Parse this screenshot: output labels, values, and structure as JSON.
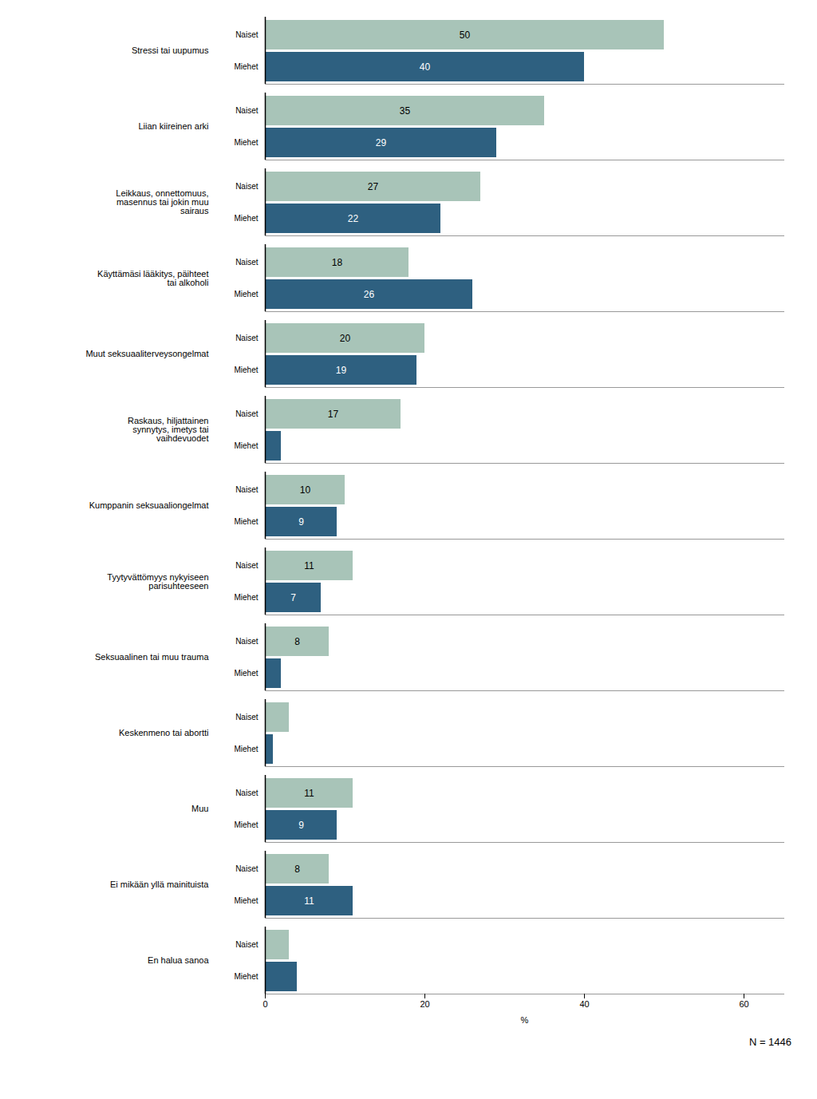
{
  "chart_data": {
    "type": "bar",
    "orientation": "horizontal",
    "categories": [
      "Stressi tai uupumus",
      "Liian kiireinen arki",
      "Leikkaus, onnettomuus,\nmasennus tai jokin muu\nsairaus",
      "Käyttämäsi lääkitys, päihteet\ntai alkoholi",
      "Muut seksuaaliterveysongelmat",
      "Raskaus, hiljattainen\nsynnytys, imetys tai\nvaihdevuodet",
      "Kumppanin seksuaaliongelmat",
      "Tyytyvättömyys nykyiseen\nparisuhteeseen",
      "Seksuaalinen tai muu trauma",
      "Keskenmeno tai abortti",
      "Muu",
      "Ei mikään yllä mainituista",
      "En halua sanoa"
    ],
    "series": [
      {
        "name": "Naiset",
        "color": "#a8c4b8",
        "values": [
          50,
          35,
          27,
          18,
          20,
          17,
          10,
          11,
          8,
          3,
          11,
          8,
          3
        ],
        "value_labels": [
          "50",
          "35",
          "27",
          "18",
          "20",
          "17",
          "10",
          "11",
          "8",
          null,
          "11",
          "8",
          null
        ]
      },
      {
        "name": "Miehet",
        "color": "#2e6080",
        "values": [
          40,
          29,
          22,
          26,
          19,
          2,
          9,
          7,
          2,
          1,
          9,
          11,
          4
        ],
        "value_labels": [
          "40",
          "29",
          "22",
          "26",
          "19",
          null,
          "9",
          "7",
          null,
          null,
          "9",
          "11",
          null
        ]
      }
    ],
    "xlabel": "%",
    "xlim": [
      0,
      65
    ],
    "xticks": [
      0,
      20,
      40,
      60
    ],
    "note": "N = 1446",
    "data_labels": true
  }
}
